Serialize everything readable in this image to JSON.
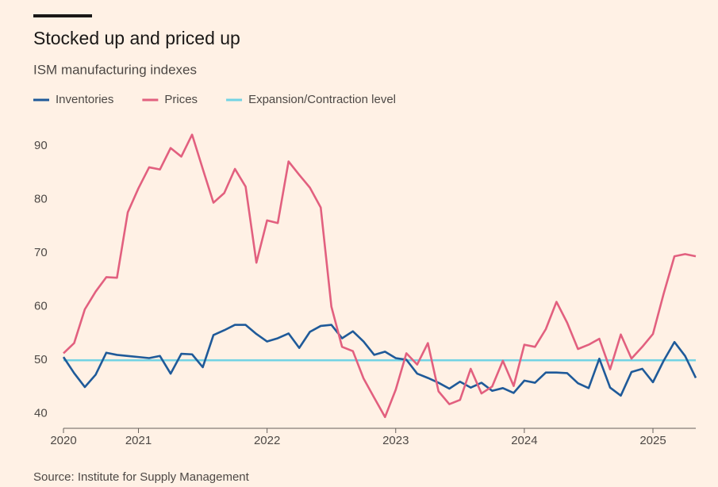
{
  "chart_data": {
    "type": "line",
    "title": "Stocked up and priced up",
    "subtitle": "ISM manufacturing indexes",
    "source": "Source: Institute for Supply Management",
    "x": [
      2020.417,
      2020.5,
      2020.583,
      2020.667,
      2020.75,
      2020.833,
      2020.917,
      2021.0,
      2021.083,
      2021.167,
      2021.25,
      2021.333,
      2021.417,
      2021.5,
      2021.583,
      2021.667,
      2021.75,
      2021.833,
      2021.917,
      2022.0,
      2022.083,
      2022.167,
      2022.25,
      2022.333,
      2022.417,
      2022.5,
      2022.583,
      2022.667,
      2022.75,
      2022.833,
      2022.917,
      2023.0,
      2023.083,
      2023.167,
      2023.25,
      2023.333,
      2023.417,
      2023.5,
      2023.583,
      2023.667,
      2023.75,
      2023.833,
      2023.917,
      2024.0,
      2024.083,
      2024.167,
      2024.25,
      2024.333,
      2024.417,
      2024.5,
      2024.583,
      2024.667,
      2024.75,
      2024.833,
      2024.917,
      2025.0,
      2025.083,
      2025.167,
      2025.25,
      2025.333
    ],
    "series": [
      {
        "name": "Inventories",
        "color": "#1f5a99",
        "values": [
          50.6,
          47.6,
          45.0,
          47.3,
          51.4,
          51.0,
          50.8,
          50.6,
          50.4,
          50.8,
          47.5,
          51.2,
          51.1,
          48.7,
          54.7,
          55.6,
          56.6,
          56.6,
          54.9,
          53.5,
          54.1,
          55.0,
          52.3,
          55.3,
          56.4,
          56.6,
          54.1,
          55.4,
          53.5,
          51.0,
          51.6,
          50.4,
          50.1,
          47.5,
          46.7,
          45.8,
          44.7,
          46.0,
          44.9,
          45.8,
          44.3,
          44.8,
          43.9,
          46.2,
          45.8,
          47.7,
          47.7,
          47.6,
          45.7,
          44.8,
          50.3,
          44.9,
          43.4,
          47.8,
          48.4,
          45.9,
          49.9,
          53.4,
          50.8,
          46.7
        ]
      },
      {
        "name": "Prices",
        "color": "#e2607f",
        "values": [
          51.3,
          53.2,
          59.5,
          62.8,
          65.5,
          65.4,
          77.6,
          82.1,
          86.0,
          85.6,
          89.6,
          88.0,
          92.1,
          85.7,
          79.4,
          81.2,
          85.7,
          82.4,
          68.2,
          76.1,
          75.6,
          87.1,
          84.6,
          82.2,
          78.5,
          60.0,
          52.5,
          51.7,
          46.6,
          43.0,
          39.4,
          44.5,
          51.3,
          49.2,
          53.2,
          44.2,
          41.8,
          42.6,
          48.4,
          43.8,
          45.1,
          49.9,
          45.2,
          52.9,
          52.5,
          55.8,
          60.9,
          57.0,
          52.1,
          52.9,
          54.0,
          48.3,
          54.8,
          50.3,
          52.5,
          54.9,
          62.4,
          69.4,
          69.8,
          69.4
        ]
      }
    ],
    "reference_line": {
      "name": "Expansion/Contraction level",
      "color": "#72d3e4",
      "value": 50
    },
    "xlim": [
      2020.417,
      2025.333
    ],
    "xticks": [
      {
        "value": 2020.417,
        "label": "2020"
      },
      2021,
      2022,
      2023,
      2024,
      2025
    ],
    "ylim": [
      37.3,
      92.8
    ],
    "yticks": [
      40,
      50,
      60,
      70,
      80,
      90
    ],
    "grid": false
  }
}
